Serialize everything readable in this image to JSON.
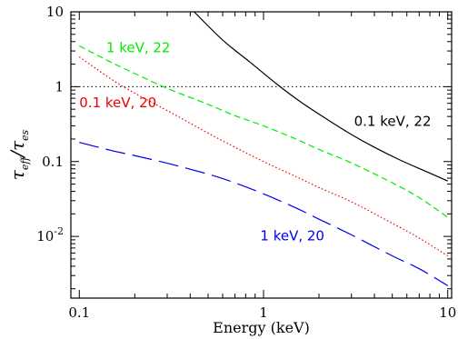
{
  "chart_data": {
    "type": "line",
    "xlabel": "Energy (keV)",
    "ylabel": {
      "main": "τ",
      "num_sub": "eff",
      "den": "τ",
      "den_sub": "es"
    },
    "xscale": "log",
    "yscale": "log",
    "xlim": [
      0.09,
      10.5
    ],
    "ylim": [
      0.0015,
      10
    ],
    "x_ticks": [
      {
        "value": 0.1,
        "label": "0.1"
      },
      {
        "value": 1,
        "label": "1"
      },
      {
        "value": 10,
        "label": "10"
      }
    ],
    "y_ticks": [
      {
        "value": 0.01,
        "label": "10",
        "sup": "-2"
      },
      {
        "value": 0.1,
        "label": "0.1",
        "sup": ""
      },
      {
        "value": 1,
        "label": "1",
        "sup": ""
      },
      {
        "value": 10,
        "label": "10",
        "sup": ""
      }
    ],
    "reference_line": {
      "y": 1,
      "style": "dotted",
      "color": "#000000"
    },
    "series": [
      {
        "name": "0.1 keV, 22",
        "color": "#000000",
        "dash": "solid",
        "x": [
          0.42,
          0.6,
          0.85,
          1.2,
          1.6,
          2.2,
          3.0,
          4.0,
          5.5,
          7.5,
          10.0
        ],
        "y": [
          10.0,
          4.2,
          2.1,
          1.05,
          0.62,
          0.37,
          0.23,
          0.155,
          0.105,
          0.075,
          0.055
        ]
      },
      {
        "name": "1 keV, 22",
        "color": "#00ee00",
        "dash": "dashed",
        "x": [
          0.1,
          0.15,
          0.2,
          0.3,
          0.5,
          0.7,
          1.0,
          1.5,
          2.0,
          3.0,
          5.0,
          7.0,
          10.0
        ],
        "y": [
          3.5,
          2.1,
          1.5,
          0.95,
          0.58,
          0.41,
          0.3,
          0.2,
          0.145,
          0.096,
          0.052,
          0.033,
          0.018
        ]
      },
      {
        "name": "0.1 keV, 20",
        "color": "#ee0000",
        "dash": "dotted",
        "x": [
          0.1,
          0.15,
          0.2,
          0.3,
          0.5,
          0.7,
          1.0,
          1.5,
          2.0,
          3.0,
          5.0,
          7.0,
          10.0
        ],
        "y": [
          2.5,
          1.25,
          0.82,
          0.48,
          0.24,
          0.155,
          0.1,
          0.063,
          0.045,
          0.029,
          0.015,
          0.0095,
          0.0055
        ]
      },
      {
        "name": "1 keV, 20",
        "color": "#0000ee",
        "dash": "longdash",
        "x": [
          0.1,
          0.15,
          0.2,
          0.3,
          0.5,
          0.7,
          1.0,
          1.5,
          2.0,
          3.0,
          5.0,
          7.0,
          10.0
        ],
        "y": [
          0.18,
          0.14,
          0.12,
          0.095,
          0.068,
          0.052,
          0.037,
          0.024,
          0.017,
          0.0105,
          0.0055,
          0.0037,
          0.0022
        ]
      }
    ],
    "annotations": [
      {
        "text": "1 keV, 22",
        "color": "#00ee00",
        "x": 0.14,
        "y": 2.9
      },
      {
        "text": "0.1 keV, 20",
        "color": "#ee0000",
        "x": 0.1,
        "y": 0.53
      },
      {
        "text": "0.1 keV, 22",
        "color": "#000000",
        "x": 3.1,
        "y": 0.3
      },
      {
        "text": "1 keV, 20",
        "color": "#0000ee",
        "x": 0.96,
        "y": 0.0088
      }
    ]
  }
}
